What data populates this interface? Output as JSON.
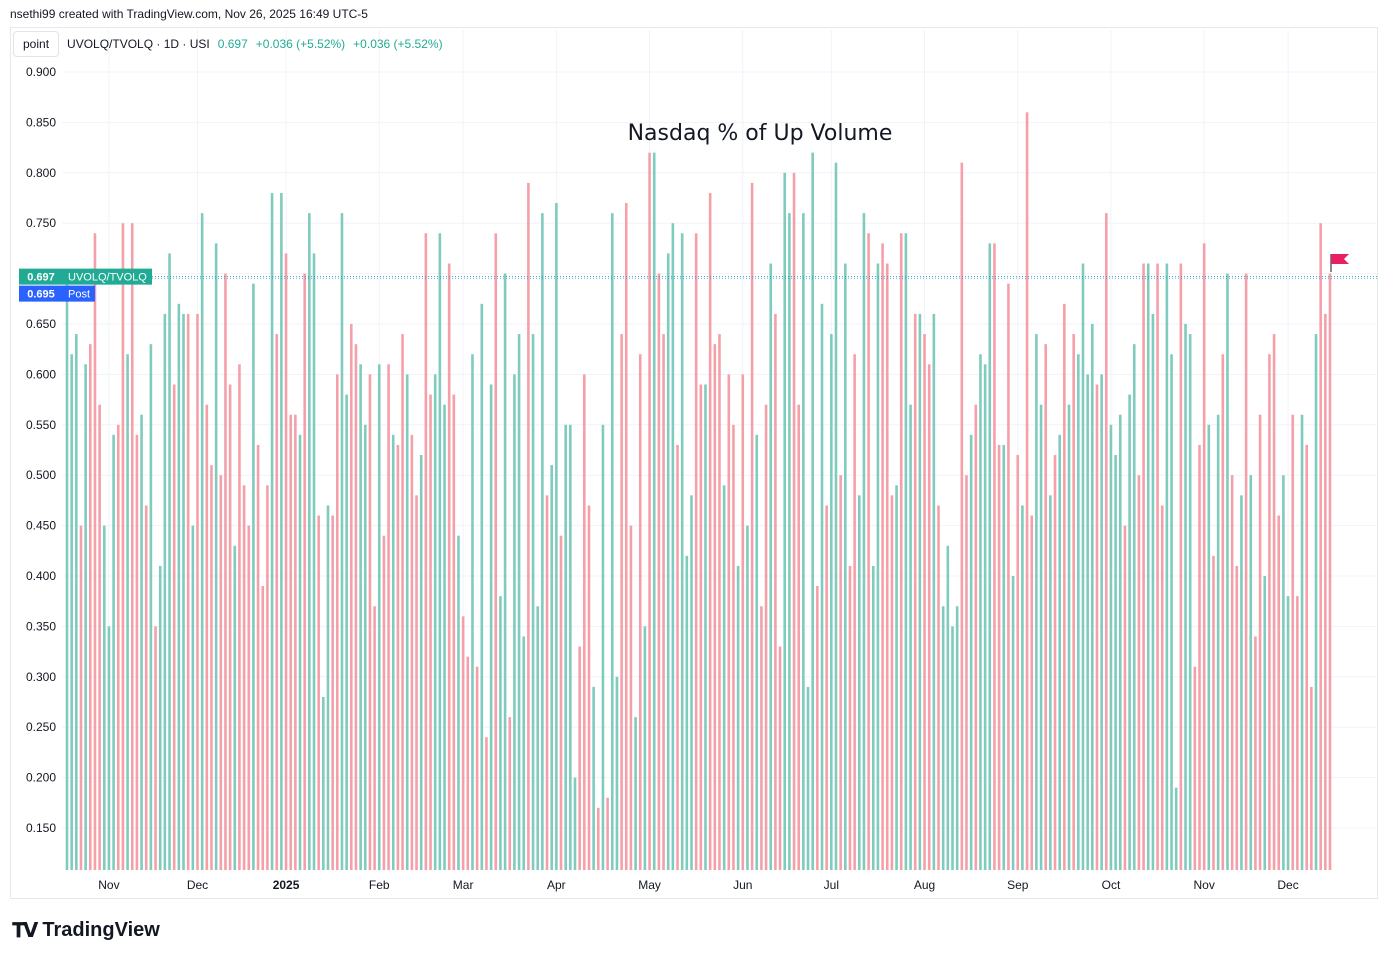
{
  "header": {
    "credit": "nsethi99 created with TradingView.com, Nov 26, 2025 16:49 UTC-5"
  },
  "legend": {
    "point_button": "point",
    "symbol": "UVOLQ/TVOLQ · 1D · USI",
    "last": "0.697",
    "change1": "+0.036 (+5.52%)",
    "change2": "+0.036 (+5.52%)"
  },
  "labels": {
    "price_tag_value": "0.697",
    "price_tag_name": "UVOLQ/TVOLQ",
    "post_tag_value": "0.695",
    "post_tag_name": "Post"
  },
  "branding": {
    "name": "TradingView"
  },
  "colors": {
    "up": "#22ab94",
    "down": "#f23645",
    "flag": "#e91e63",
    "post": "#2962ff"
  },
  "chart_data": {
    "type": "bar",
    "title": "Nasdaq % of Up Volume",
    "ylim": [
      0.11,
      0.905
    ],
    "y_ticks": [
      "0.900",
      "0.850",
      "0.800",
      "0.750",
      "0.700",
      "0.650",
      "0.600",
      "0.550",
      "0.500",
      "0.450",
      "0.400",
      "0.350",
      "0.300",
      "0.250",
      "0.200",
      "0.150"
    ],
    "x_ticks": [
      {
        "label": "Nov",
        "index": 9
      },
      {
        "label": "Dec",
        "index": 28
      },
      {
        "label": "2025",
        "index": 47
      },
      {
        "label": "Feb",
        "index": 67
      },
      {
        "label": "Mar",
        "index": 85
      },
      {
        "label": "Apr",
        "index": 105
      },
      {
        "label": "May",
        "index": 125
      },
      {
        "label": "Jun",
        "index": 145
      },
      {
        "label": "Jul",
        "index": 164
      },
      {
        "label": "Aug",
        "index": 184
      },
      {
        "label": "Sep",
        "index": 204
      },
      {
        "label": "Oct",
        "index": 224
      },
      {
        "label": "Nov",
        "index": 244
      },
      {
        "label": "Dec",
        "index": 262
      }
    ],
    "last_value": 0.697,
    "post_value": 0.695,
    "values": [
      0.7,
      0.62,
      0.64,
      0.45,
      0.61,
      0.63,
      0.74,
      0.57,
      0.45,
      0.35,
      0.54,
      0.55,
      0.75,
      0.62,
      0.75,
      0.54,
      0.56,
      0.47,
      0.63,
      0.35,
      0.41,
      0.66,
      0.72,
      0.59,
      0.67,
      0.66,
      0.66,
      0.45,
      0.66,
      0.76,
      0.57,
      0.51,
      0.73,
      0.5,
      0.7,
      0.59,
      0.43,
      0.61,
      0.49,
      0.45,
      0.69,
      0.53,
      0.39,
      0.49,
      0.78,
      0.64,
      0.78,
      0.72,
      0.56,
      0.56,
      0.54,
      0.7,
      0.76,
      0.72,
      0.46,
      0.28,
      0.47,
      0.46,
      0.6,
      0.76,
      0.58,
      0.65,
      0.63,
      0.61,
      0.55,
      0.6,
      0.37,
      0.61,
      0.44,
      0.61,
      0.54,
      0.53,
      0.64,
      0.6,
      0.54,
      0.48,
      0.52,
      0.74,
      0.58,
      0.6,
      0.74,
      0.57,
      0.71,
      0.58,
      0.44,
      0.36,
      0.32,
      0.62,
      0.31,
      0.67,
      0.24,
      0.59,
      0.74,
      0.38,
      0.7,
      0.26,
      0.6,
      0.64,
      0.34,
      0.79,
      0.64,
      0.37,
      0.76,
      0.48,
      0.51,
      0.77,
      0.44,
      0.55,
      0.55,
      0.2,
      0.33,
      0.6,
      0.47,
      0.29,
      0.17,
      0.55,
      0.18,
      0.76,
      0.3,
      0.64,
      0.77,
      0.45,
      0.26,
      0.62,
      0.35,
      0.82,
      0.82,
      0.7,
      0.64,
      0.72,
      0.75,
      0.53,
      0.74,
      0.42,
      0.48,
      0.74,
      0.59,
      0.59,
      0.78,
      0.63,
      0.64,
      0.49,
      0.6,
      0.55,
      0.41,
      0.6,
      0.45,
      0.79,
      0.54,
      0.37,
      0.57,
      0.71,
      0.66,
      0.33,
      0.8,
      0.76,
      0.8,
      0.57,
      0.76,
      0.29,
      0.82,
      0.39,
      0.67,
      0.47,
      0.64,
      0.81,
      0.5,
      0.71,
      0.41,
      0.62,
      0.48,
      0.76,
      0.74,
      0.41,
      0.71,
      0.73,
      0.71,
      0.48,
      0.49,
      0.74,
      0.74,
      0.57,
      0.66,
      0.66,
      0.64,
      0.61,
      0.66,
      0.47,
      0.37,
      0.43,
      0.35,
      0.37,
      0.81,
      0.5,
      0.54,
      0.57,
      0.62,
      0.61,
      0.73,
      0.73,
      0.53,
      0.53,
      0.69,
      0.4,
      0.52,
      0.47,
      0.86,
      0.46,
      0.64,
      0.57,
      0.63,
      0.48,
      0.52,
      0.54,
      0.67,
      0.57,
      0.64,
      0.62,
      0.71,
      0.6,
      0.65,
      0.59,
      0.6,
      0.76,
      0.55,
      0.52,
      0.56,
      0.45,
      0.58,
      0.63,
      0.5,
      0.71,
      0.71,
      0.66,
      0.71,
      0.47,
      0.71,
      0.62,
      0.19,
      0.71,
      0.65,
      0.64,
      0.31,
      0.53,
      0.73,
      0.55,
      0.42,
      0.56,
      0.62,
      0.7,
      0.5,
      0.41,
      0.48,
      0.7,
      0.5,
      0.34,
      0.56,
      0.4,
      0.62,
      0.64,
      0.46,
      0.5,
      0.38,
      0.56,
      0.38,
      0.56,
      0.53,
      0.29,
      0.64,
      0.75,
      0.66,
      0.7
    ],
    "colors": "gggrgrrrgggrrgrrgrgrgggrggrgrgrrgrrrgrrrgrrrgrgrrrgrggrggrrggrrggrrgrrgrrgrrgrrgggrrgrrgrgrgrggrgggrgggrggrgggrrrgrgrggrrrgrgrgrrggrgggrrgrrrgrrgrgrgrrgrrggrrgggrgrggrgrrggrggrrrgrggrgrrgrggggrrgrgggrrgrgrgrrggrgrgrgrggggrgrgggrggrrggrrgggrggrrrgrgrgrrgrgrrgrrrggrrgrrgrrrgg"
  }
}
